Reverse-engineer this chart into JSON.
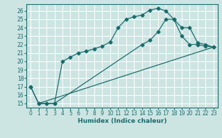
{
  "xlabel": "Humidex (Indice chaleur)",
  "bg_color": "#cce5e3",
  "grid_color": "#ffffff",
  "line_color": "#1a6b6b",
  "xlim": [
    -0.5,
    23.5
  ],
  "ylim": [
    14.5,
    26.8
  ],
  "xticks": [
    0,
    1,
    2,
    3,
    4,
    5,
    6,
    7,
    8,
    9,
    10,
    11,
    12,
    13,
    14,
    15,
    16,
    17,
    18,
    19,
    20,
    21,
    22,
    23
  ],
  "yticks": [
    15,
    16,
    17,
    18,
    19,
    20,
    21,
    22,
    23,
    24,
    25,
    26
  ],
  "line1_x": [
    0,
    1,
    2,
    3,
    4,
    5,
    6,
    7,
    8,
    9,
    10,
    11,
    12,
    13,
    14,
    15,
    16,
    17,
    18,
    19,
    20,
    21,
    22,
    23
  ],
  "line1_y": [
    17.0,
    15.0,
    15.0,
    15.0,
    20.0,
    20.5,
    21.0,
    21.2,
    21.5,
    21.8,
    22.3,
    24.0,
    25.0,
    25.3,
    25.5,
    26.1,
    26.3,
    26.0,
    25.0,
    24.0,
    24.0,
    22.2,
    22.0,
    21.7
  ],
  "line2_x": [
    0,
    1,
    2,
    3,
    14,
    15,
    16,
    17,
    18,
    19,
    20,
    21,
    22,
    23
  ],
  "line2_y": [
    17.0,
    15.0,
    15.0,
    15.0,
    22.0,
    22.5,
    23.5,
    25.0,
    25.0,
    23.0,
    22.0,
    22.0,
    21.8,
    21.7
  ],
  "line3_x": [
    1,
    23
  ],
  "line3_y": [
    15.0,
    21.7
  ],
  "tick_fontsize": 5.5,
  "xlabel_fontsize": 6.5
}
